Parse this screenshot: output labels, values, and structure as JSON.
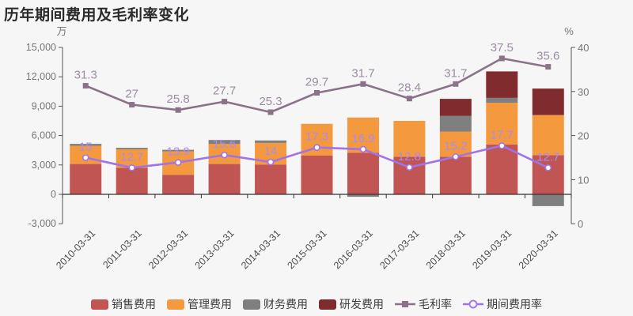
{
  "title": "历年期间费用及毛利率变化",
  "left_axis": {
    "unit": "万",
    "tick_labels": [
      "15,000",
      "12,000",
      "9,000",
      "6,000",
      "3,000",
      "0",
      "-3,000"
    ],
    "tick_values": [
      15000,
      12000,
      9000,
      6000,
      3000,
      0,
      -3000
    ],
    "max": 15000,
    "min": -3000
  },
  "right_axis": {
    "unit": "%",
    "tick_labels": [
      "40",
      "30",
      "20",
      "10",
      "0"
    ],
    "tick_values": [
      40,
      30,
      20,
      10,
      0
    ],
    "max": 40,
    "min": 0
  },
  "chart_data": {
    "type": "bar",
    "subtype": "stacked-bar-with-lines",
    "categories": [
      "2010-03-31",
      "2011-03-31",
      "2012-03-31",
      "2013-03-31",
      "2014-03-31",
      "2015-03-31",
      "2016-03-31",
      "2017-03-31",
      "2018-03-31",
      "2019-03-31",
      "2020-03-31"
    ],
    "title": "历年期间费用及毛利率变化",
    "xlabel": "",
    "ylabel_left": "万",
    "ylabel_right": "%",
    "ylim_left": [
      -3000,
      15000
    ],
    "ylim_right": [
      0,
      40
    ],
    "grid": false,
    "legend_position": "bottom",
    "series": [
      {
        "name": "销售费用",
        "key": "sales",
        "type": "bar",
        "stack": true,
        "color": "#c15553",
        "values": [
          3100,
          2700,
          2000,
          3100,
          3050,
          3950,
          4250,
          3850,
          3850,
          5100,
          4000
        ]
      },
      {
        "name": "管理费用",
        "key": "admin",
        "type": "bar",
        "stack": true,
        "color": "#f5993f",
        "values": [
          1850,
          1900,
          2400,
          2050,
          2200,
          3250,
          3600,
          3650,
          2550,
          4250,
          4100
        ]
      },
      {
        "name": "财务费用",
        "key": "finance",
        "type": "bar",
        "stack": true,
        "color": "#7f7f7f",
        "values": [
          200,
          150,
          150,
          400,
          250,
          0,
          -250,
          0,
          1600,
          500,
          -1200
        ]
      },
      {
        "name": "研发费用",
        "key": "rd",
        "type": "bar",
        "stack": true,
        "color": "#802c2f",
        "values": [
          0,
          0,
          0,
          0,
          0,
          0,
          0,
          0,
          1750,
          2700,
          2700
        ]
      },
      {
        "name": "毛利率",
        "key": "gross-margin",
        "type": "line",
        "axis": "right",
        "marker": "square",
        "color": "#8a7389",
        "label_color": "#9d8ba3",
        "values": [
          31.3,
          27,
          25.8,
          27.7,
          25.3,
          29.7,
          31.7,
          28.4,
          31.7,
          37.5,
          35.6
        ]
      },
      {
        "name": "期间费用率",
        "key": "expense-ratio",
        "type": "line",
        "axis": "right",
        "marker": "circle-hollow",
        "color": "#a073e6",
        "label_color": "#aa8cf0",
        "values": [
          15,
          12.7,
          13.9,
          15.6,
          14,
          17.3,
          16.9,
          12.8,
          15.2,
          17.7,
          12.7
        ]
      }
    ]
  },
  "legend": {
    "items": [
      {
        "label": "销售费用",
        "swatch": "bar",
        "color": "#c15553"
      },
      {
        "label": "管理费用",
        "swatch": "bar",
        "color": "#f5993f"
      },
      {
        "label": "财务费用",
        "swatch": "bar",
        "color": "#7f7f7f"
      },
      {
        "label": "研发费用",
        "swatch": "bar",
        "color": "#802c2f"
      },
      {
        "label": "毛利率",
        "swatch": "line-square",
        "color": "#8a7389"
      },
      {
        "label": "期间费用率",
        "swatch": "line-circle",
        "color": "#a073e6"
      }
    ]
  },
  "colors": {
    "background": "#f6f6f6",
    "axis_line": "#555555",
    "tick_label": "#757575",
    "x_label": "#4d4d4d",
    "title": "#2b2b2b"
  }
}
